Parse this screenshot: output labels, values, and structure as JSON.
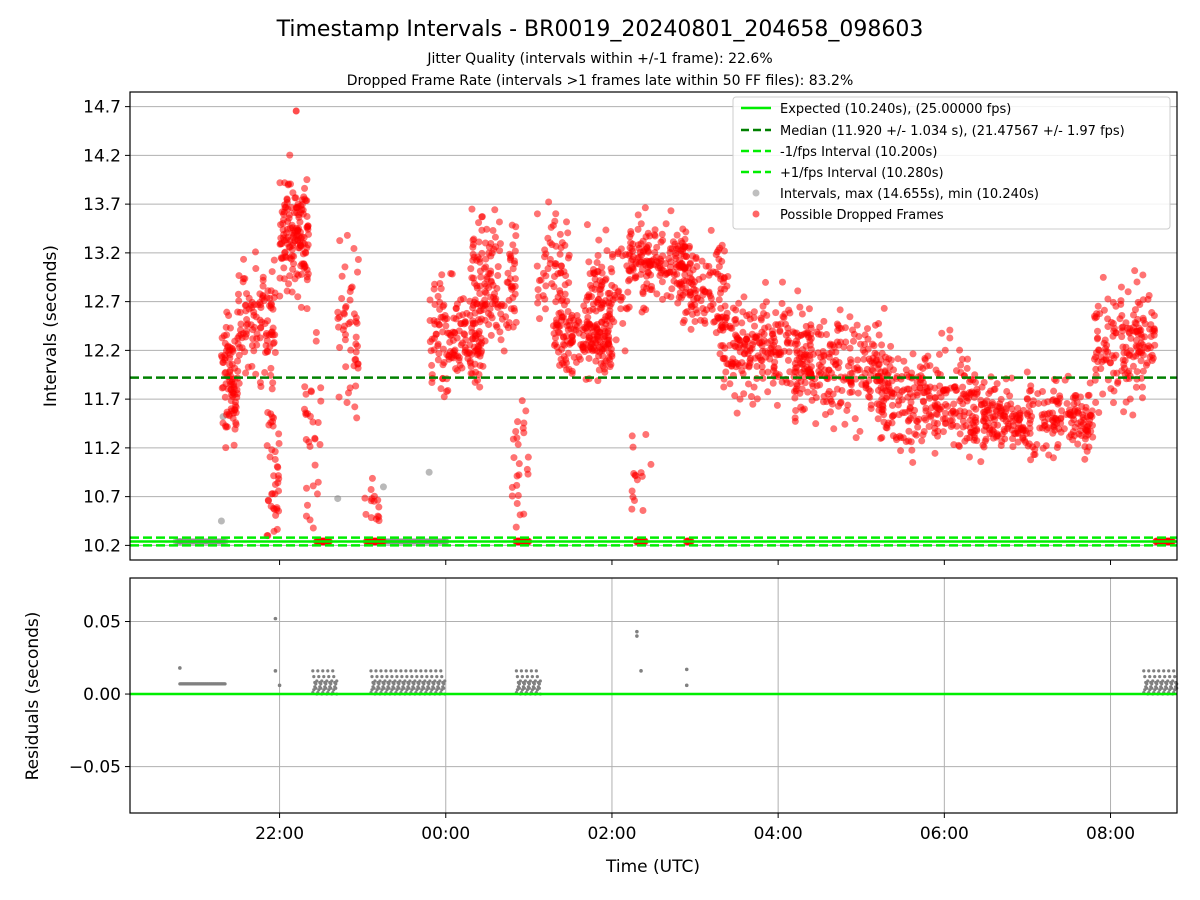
{
  "title": "Timestamp Intervals - BR0019_20240801_204658_098603",
  "subtitle_1": "Jitter Quality (intervals within +/-1 frame): 22.6%",
  "subtitle_2": "Dropped Frame Rate (intervals >1 frames late within 50 FF files): 83.2%",
  "colors": {
    "expected": "#00ee00",
    "median": "#008000",
    "dropped": "#ff0000",
    "intervals": "#808080",
    "grid": "#b0b0b0",
    "axis": "#000000"
  },
  "chart_data": [
    {
      "type": "scatter",
      "title": "Timestamp Intervals - BR0019_20240801_204658_098603",
      "xlabel": "",
      "ylabel": "Intervals (seconds)",
      "x_range_hours": [
        20.2,
        32.8
      ],
      "ylim": [
        10.05,
        14.85
      ],
      "y_ticks": [
        10.2,
        10.7,
        11.2,
        11.7,
        12.2,
        12.7,
        13.2,
        13.7,
        14.2,
        14.7
      ],
      "y_tick_labels": [
        "10.2",
        "10.7",
        "11.2",
        "11.7",
        "12.2",
        "12.7",
        "13.2",
        "13.7",
        "14.2",
        "14.7"
      ],
      "x_ticks_hours": [
        22,
        24,
        26,
        28,
        30,
        32
      ],
      "grid": true,
      "legend_position": "top-right",
      "reference_lines": [
        {
          "name": "Expected (10.240s), (25.00000 fps)",
          "y": 10.24,
          "style": "solid",
          "color": "#00ee00"
        },
        {
          "name": "Median (11.920 +/- 1.034 s), (21.47567 +/- 1.97 fps)",
          "y": 11.92,
          "style": "dashed",
          "color": "#008000"
        },
        {
          "name": "-1/fps Interval (10.200s)",
          "y": 10.2,
          "style": "dashed",
          "color": "#00ee00"
        },
        {
          "name": "+1/fps Interval (10.280s)",
          "y": 10.28,
          "style": "dashed",
          "color": "#00ee00"
        }
      ],
      "series": [
        {
          "name": "Intervals, max (14.655s), min (10.240s)",
          "color": "#808080",
          "marker": "circle",
          "note_points": [
            [
              20.8,
              10.24
            ],
            [
              21.32,
              11.52
            ],
            [
              21.3,
              10.45
            ],
            [
              22.7,
              10.68
            ],
            [
              23.25,
              10.8
            ],
            [
              23.8,
              10.95
            ],
            [
              24.0,
              10.24
            ]
          ]
        },
        {
          "name": "Possible Dropped Frames",
          "color": "#ff0000",
          "marker": "circle",
          "clusters": [
            {
              "x": [
                21.3,
                21.5
              ],
              "y_center": 11.9,
              "y_spread": 0.55,
              "count": 90
            },
            {
              "x": [
                21.5,
                21.95
              ],
              "y_center": 12.5,
              "y_spread": 0.55,
              "count": 110
            },
            {
              "x": [
                21.85,
                22.0
              ],
              "y_center": 11.0,
              "y_spread": 0.8,
              "count": 40
            },
            {
              "x": [
                22.0,
                22.35
              ],
              "y_center": 13.4,
              "y_spread": 0.55,
              "count": 150
            },
            {
              "x": [
                22.3,
                22.5
              ],
              "y_center": 11.3,
              "y_spread": 1.0,
              "count": 30
            },
            {
              "x": [
                22.7,
                22.95
              ],
              "y_center": 12.4,
              "y_spread": 0.8,
              "count": 50
            },
            {
              "x": [
                23.0,
                23.2
              ],
              "y_center": 10.6,
              "y_spread": 0.25,
              "count": 15
            },
            {
              "x": [
                23.8,
                24.45
              ],
              "y_center": 12.3,
              "y_spread": 0.5,
              "count": 160
            },
            {
              "x": [
                24.3,
                24.85
              ],
              "y_center": 12.9,
              "y_spread": 0.55,
              "count": 140
            },
            {
              "x": [
                24.8,
                25.0
              ],
              "y_center": 11.0,
              "y_spread": 0.6,
              "count": 25
            },
            {
              "x": [
                25.1,
                25.5
              ],
              "y_center": 13.1,
              "y_spread": 0.5,
              "count": 60
            },
            {
              "x": [
                25.3,
                26.0
              ],
              "y_center": 12.35,
              "y_spread": 0.4,
              "count": 180
            },
            {
              "x": [
                25.7,
                26.2
              ],
              "y_center": 12.8,
              "y_spread": 0.55,
              "count": 90
            },
            {
              "x": [
                26.2,
                26.9
              ],
              "y_center": 13.1,
              "y_spread": 0.35,
              "count": 170
            },
            {
              "x": [
                26.8,
                27.4
              ],
              "y_center": 12.9,
              "y_spread": 0.4,
              "count": 120
            },
            {
              "x": [
                26.2,
                26.5
              ],
              "y_center": 10.9,
              "y_spread": 0.4,
              "count": 15
            },
            {
              "x": [
                27.3,
                28.4
              ],
              "y_center": 12.2,
              "y_spread": 0.45,
              "count": 250
            },
            {
              "x": [
                28.2,
                29.3
              ],
              "y_center": 12.0,
              "y_spread": 0.5,
              "count": 220
            },
            {
              "x": [
                29.2,
                30.4
              ],
              "y_center": 11.7,
              "y_spread": 0.45,
              "count": 260
            },
            {
              "x": [
                30.3,
                31.8
              ],
              "y_center": 11.5,
              "y_spread": 0.35,
              "count": 300
            },
            {
              "x": [
                31.8,
                32.4
              ],
              "y_center": 12.2,
              "y_spread": 0.55,
              "count": 130
            },
            {
              "x": [
                32.3,
                32.55
              ],
              "y_center": 12.4,
              "y_spread": 0.35,
              "count": 40
            }
          ],
          "low_points_at_10_24": [
            [
              22.45,
              22.6
            ],
            [
              23.05,
              23.25
            ],
            [
              24.85,
              25.0
            ],
            [
              26.3,
              26.4
            ],
            [
              26.9,
              26.95
            ],
            [
              32.55,
              32.75
            ]
          ]
        }
      ]
    },
    {
      "type": "scatter",
      "title": "",
      "xlabel": "Time (UTC)",
      "ylabel": "Residuals (seconds)",
      "ylim": [
        -0.082,
        0.08
      ],
      "y_ticks": [
        0.05,
        0.0,
        -0.05
      ],
      "y_tick_labels": [
        "0.05",
        "0.00",
        "−0.05"
      ],
      "x_ticks_hours": [
        22,
        24,
        26,
        28,
        30,
        32
      ],
      "x_tick_labels": [
        "22:00",
        "00:00",
        "02:00",
        "04:00",
        "06:00",
        "08:00"
      ],
      "grid": true,
      "reference_lines": [
        {
          "y": 0.0,
          "style": "solid",
          "color": "#00ee00"
        }
      ],
      "series": [
        {
          "name": "",
          "color": "#808080",
          "marker": "point",
          "segments": [
            {
              "x": [
                20.8,
                21.35
              ],
              "pattern": "flat",
              "level": 0.007
            },
            {
              "x": [
                22.4,
                22.7
              ],
              "pattern": "sawtooth",
              "max": 0.016
            },
            {
              "x": [
                23.1,
                24.0
              ],
              "pattern": "sawtooth",
              "max": 0.016
            },
            {
              "x": [
                24.85,
                25.15
              ],
              "pattern": "sawtooth",
              "max": 0.016
            },
            {
              "x": [
                32.4,
                32.8
              ],
              "pattern": "sawtooth",
              "max": 0.016
            }
          ],
          "points": [
            [
              20.8,
              0.018
            ],
            [
              21.95,
              0.052
            ],
            [
              21.95,
              0.016
            ],
            [
              22.0,
              0.006
            ],
            [
              26.3,
              0.043
            ],
            [
              26.3,
              0.04
            ],
            [
              26.35,
              0.016
            ],
            [
              26.9,
              0.017
            ],
            [
              26.9,
              0.006
            ]
          ]
        }
      ]
    }
  ]
}
